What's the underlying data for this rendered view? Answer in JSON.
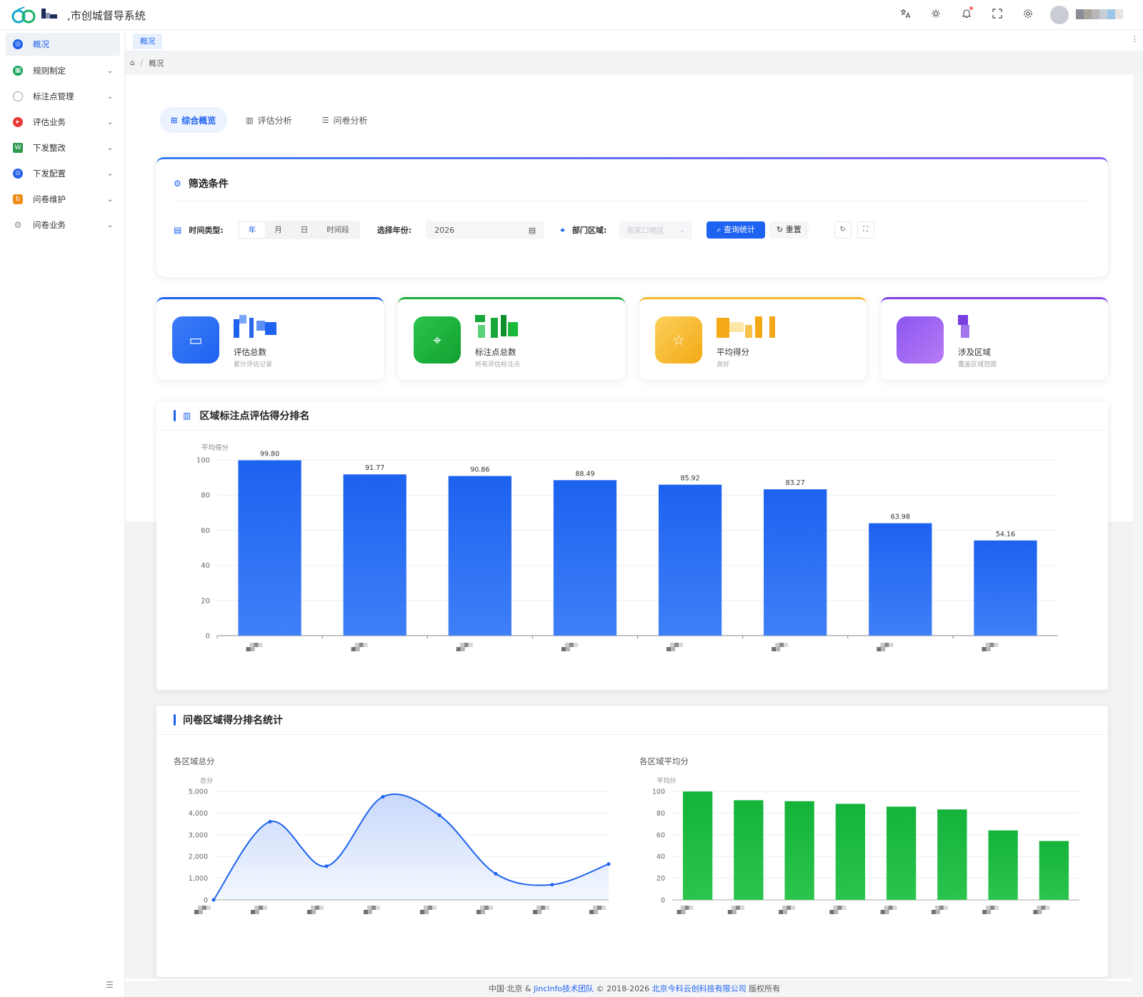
{
  "app": {
    "title": ",市创城督导系统"
  },
  "header_icons": [
    "translate-icon",
    "theme-icon",
    "bell-icon",
    "fullscreen-icon",
    "settings-icon"
  ],
  "sidebar": {
    "items": [
      {
        "label": "概况",
        "icon": "dashboard-icon",
        "color": "#1d62f0",
        "active": true
      },
      {
        "label": "规则制定",
        "icon": "rules-icon",
        "color": "#19a35a"
      },
      {
        "label": "标注点管理",
        "icon": "lightbulb-icon",
        "color": "#9aa0a6"
      },
      {
        "label": "评估业务",
        "icon": "assess-icon",
        "color": "#e53935"
      },
      {
        "label": "下发整改",
        "icon": "excel-icon",
        "color": "#2e9b4f"
      },
      {
        "label": "下发配置",
        "icon": "config-icon",
        "color": "#2563eb"
      },
      {
        "label": "问卷维护",
        "icon": "survey-icon",
        "color": "#f08c1c"
      },
      {
        "label": "问卷业务",
        "icon": "survey-business-icon",
        "color": "#8a8f98"
      }
    ]
  },
  "page_tab": "概况",
  "breadcrumb": {
    "current": "概况"
  },
  "main_tabs": [
    {
      "label": "综合概览",
      "active": true
    },
    {
      "label": "评估分析"
    },
    {
      "label": "问卷分析"
    }
  ],
  "filter": {
    "title": "筛选条件",
    "time_type_label": "时间类型:",
    "time_options": [
      "年",
      "月",
      "日",
      "时间段"
    ],
    "year_label": "选择年份:",
    "year_value": "2026",
    "dept_label": "部门区域:",
    "dept_placeholder": "张家口地区",
    "query_label": "查询统计",
    "reset_label": "重置"
  },
  "stats": [
    {
      "label": "评估总数",
      "sub": "累计评估记录",
      "color": "#1d62f0",
      "icon": "document-icon"
    },
    {
      "label": "标注点总数",
      "sub": "所有评估标注点",
      "color": "#1aad3a",
      "icon": "location-icon"
    },
    {
      "label": "平均得分",
      "sub": "良好",
      "color": "#f5b62a",
      "icon": "star-icon"
    },
    {
      "label": "涉及区域",
      "sub": "覆盖区域范围",
      "color": "#7a3fe0",
      "icon": "region-icon"
    }
  ],
  "ranking": {
    "title": "区域标注点评估得分排名"
  },
  "questionnaire": {
    "title": "问卷区域得分排名统计",
    "left_title": "各区域总分",
    "right_title": "各区域平均分"
  },
  "chart_data": [
    {
      "type": "bar",
      "title": "区域标注点评估得分排名",
      "ylabel": "平均得分",
      "ylim": [
        0,
        100
      ],
      "yticks": [
        0,
        20,
        40,
        60,
        80,
        100
      ],
      "values": [
        99.8,
        91.77,
        90.86,
        88.49,
        85.92,
        83.27,
        63.98,
        54.16
      ],
      "data_labels": [
        "99.80",
        "91.77",
        "90.86",
        "88.49",
        "85.92",
        "83.27",
        "63.98",
        "54.16"
      ],
      "color": "#1d62f0"
    },
    {
      "type": "area",
      "title": "各区域总分",
      "ylabel": "总分",
      "ylim": [
        0,
        5000
      ],
      "yticks": [
        "0",
        "1,000",
        "2,000",
        "3,000",
        "4,000",
        "5,000"
      ],
      "values": [
        0,
        3600,
        1550,
        4750,
        3900,
        1200,
        700,
        1650
      ],
      "color": "#1d62f0"
    },
    {
      "type": "bar",
      "title": "各区域平均分",
      "ylabel": "平均分",
      "ylim": [
        0,
        100
      ],
      "yticks": [
        0,
        20,
        40,
        60,
        80,
        100
      ],
      "values": [
        99.8,
        91.8,
        90.9,
        88.5,
        85.9,
        83.3,
        64.0,
        54.2
      ],
      "color": "#1ab83a"
    }
  ],
  "footer": {
    "prefix": "中国·北京 & ",
    "team": "JincInfo技术团队",
    "copyright": " © 2018-2026 ",
    "company": "北京今科云创科技有限公司",
    "suffix": " 版权所有"
  }
}
